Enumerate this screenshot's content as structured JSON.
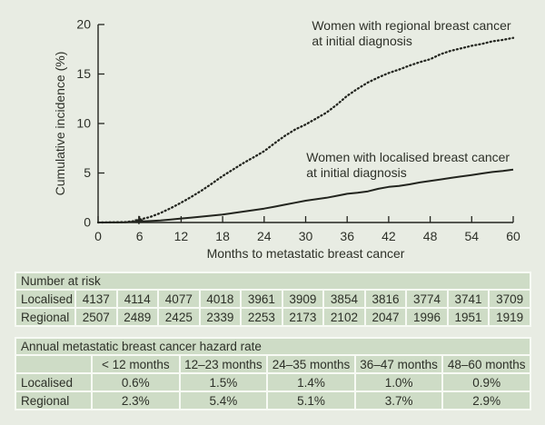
{
  "page": {
    "background": "#e8ece3",
    "text_color": "#2d3028"
  },
  "colors": {
    "axis": "#23251f",
    "cell_green": "#cedcc6",
    "gap_white": "#f7faf4"
  },
  "chart_data": {
    "type": "line",
    "title": "",
    "xlabel": "Months to metastatic breast cancer",
    "ylabel": "Cumulative incidence (%)",
    "xlim": [
      0,
      60
    ],
    "ylim": [
      0,
      20
    ],
    "xticks": [
      0,
      6,
      12,
      18,
      24,
      30,
      36,
      42,
      48,
      54,
      60
    ],
    "yticks": [
      0,
      5,
      10,
      15,
      20
    ],
    "grid": false,
    "legend_position": "inline-annotations",
    "series": [
      {
        "name": "Women with regional breast cancer at initial diagnosis",
        "label_lines": [
          "Women with regional breast cancer",
          "at initial diagnosis"
        ],
        "label_anchor": {
          "x": 30.9,
          "y": 19.45
        },
        "style": "dotted",
        "color": "#23251f",
        "x": [
          0,
          2,
          4,
          5,
          6,
          7.5,
          9,
          10.5,
          12,
          13.5,
          15,
          16.5,
          18,
          19.5,
          21,
          22.5,
          24,
          25.5,
          27,
          28.5,
          30,
          31.5,
          33,
          34.5,
          36,
          37.5,
          39,
          40.5,
          42,
          43.5,
          45,
          46.5,
          48,
          49.5,
          51,
          52.5,
          54,
          55.5,
          57,
          58.5,
          60
        ],
        "y": [
          0,
          0.02,
          0.05,
          0.12,
          0.3,
          0.55,
          0.95,
          1.45,
          2.0,
          2.6,
          3.25,
          3.95,
          4.7,
          5.35,
          6.0,
          6.6,
          7.2,
          8.0,
          8.75,
          9.4,
          9.9,
          10.5,
          11.1,
          11.9,
          12.8,
          13.5,
          14.15,
          14.65,
          15.1,
          15.45,
          15.85,
          16.2,
          16.5,
          17.0,
          17.35,
          17.6,
          17.85,
          18.05,
          18.3,
          18.45,
          18.65
        ]
      },
      {
        "name": "Women with localised breast cancer at initial diagnosis",
        "label_lines": [
          "Women with localised breast cancer",
          "at initial diagnosis"
        ],
        "label_anchor": {
          "x": 30.1,
          "y": 6.15
        },
        "style": "solid",
        "color": "#23251f",
        "x": [
          0,
          2,
          4,
          5,
          6,
          7.5,
          9,
          10.5,
          12,
          13.5,
          15,
          16.5,
          18,
          19.5,
          21,
          22.5,
          24,
          25.5,
          27,
          28.5,
          30,
          31.5,
          33,
          34.5,
          36,
          37.5,
          39,
          40.5,
          42,
          43.5,
          45,
          46.5,
          48,
          49.5,
          51,
          52.5,
          54,
          55.5,
          57,
          58.5,
          60
        ],
        "y": [
          0,
          0.01,
          0.03,
          0.06,
          0.1,
          0.15,
          0.2,
          0.3,
          0.4,
          0.5,
          0.6,
          0.7,
          0.8,
          0.95,
          1.1,
          1.25,
          1.4,
          1.6,
          1.8,
          2.0,
          2.2,
          2.35,
          2.5,
          2.7,
          2.9,
          3.0,
          3.15,
          3.4,
          3.6,
          3.7,
          3.85,
          4.05,
          4.2,
          4.35,
          4.5,
          4.65,
          4.8,
          4.95,
          5.1,
          5.2,
          5.35
        ]
      }
    ],
    "censor_mark": {
      "x": 5.9,
      "y": 0.25,
      "symbol": "+"
    }
  },
  "risk_table": {
    "title": "Number at risk",
    "rows": [
      {
        "label": "Localised",
        "values": [
          "4137",
          "4114",
          "4077",
          "4018",
          "3961",
          "3909",
          "3854",
          "3816",
          "3774",
          "3741",
          "3709"
        ]
      },
      {
        "label": "Regional",
        "values": [
          "2507",
          "2489",
          "2425",
          "2339",
          "2253",
          "2173",
          "2102",
          "2047",
          "1996",
          "1951",
          "1919"
        ]
      }
    ]
  },
  "hazard_table": {
    "title": "Annual metastatic breast cancer hazard rate",
    "columns": [
      "< 12 months",
      "12–23 months",
      "24–35 months",
      "36–47 months",
      "48–60 months"
    ],
    "rows": [
      {
        "label": "Localised",
        "values": [
          "0.6%",
          "1.5%",
          "1.4%",
          "1.0%",
          "0.9%"
        ]
      },
      {
        "label": "Regional",
        "values": [
          "2.3%",
          "5.4%",
          "5.1%",
          "3.7%",
          "2.9%"
        ]
      }
    ]
  }
}
